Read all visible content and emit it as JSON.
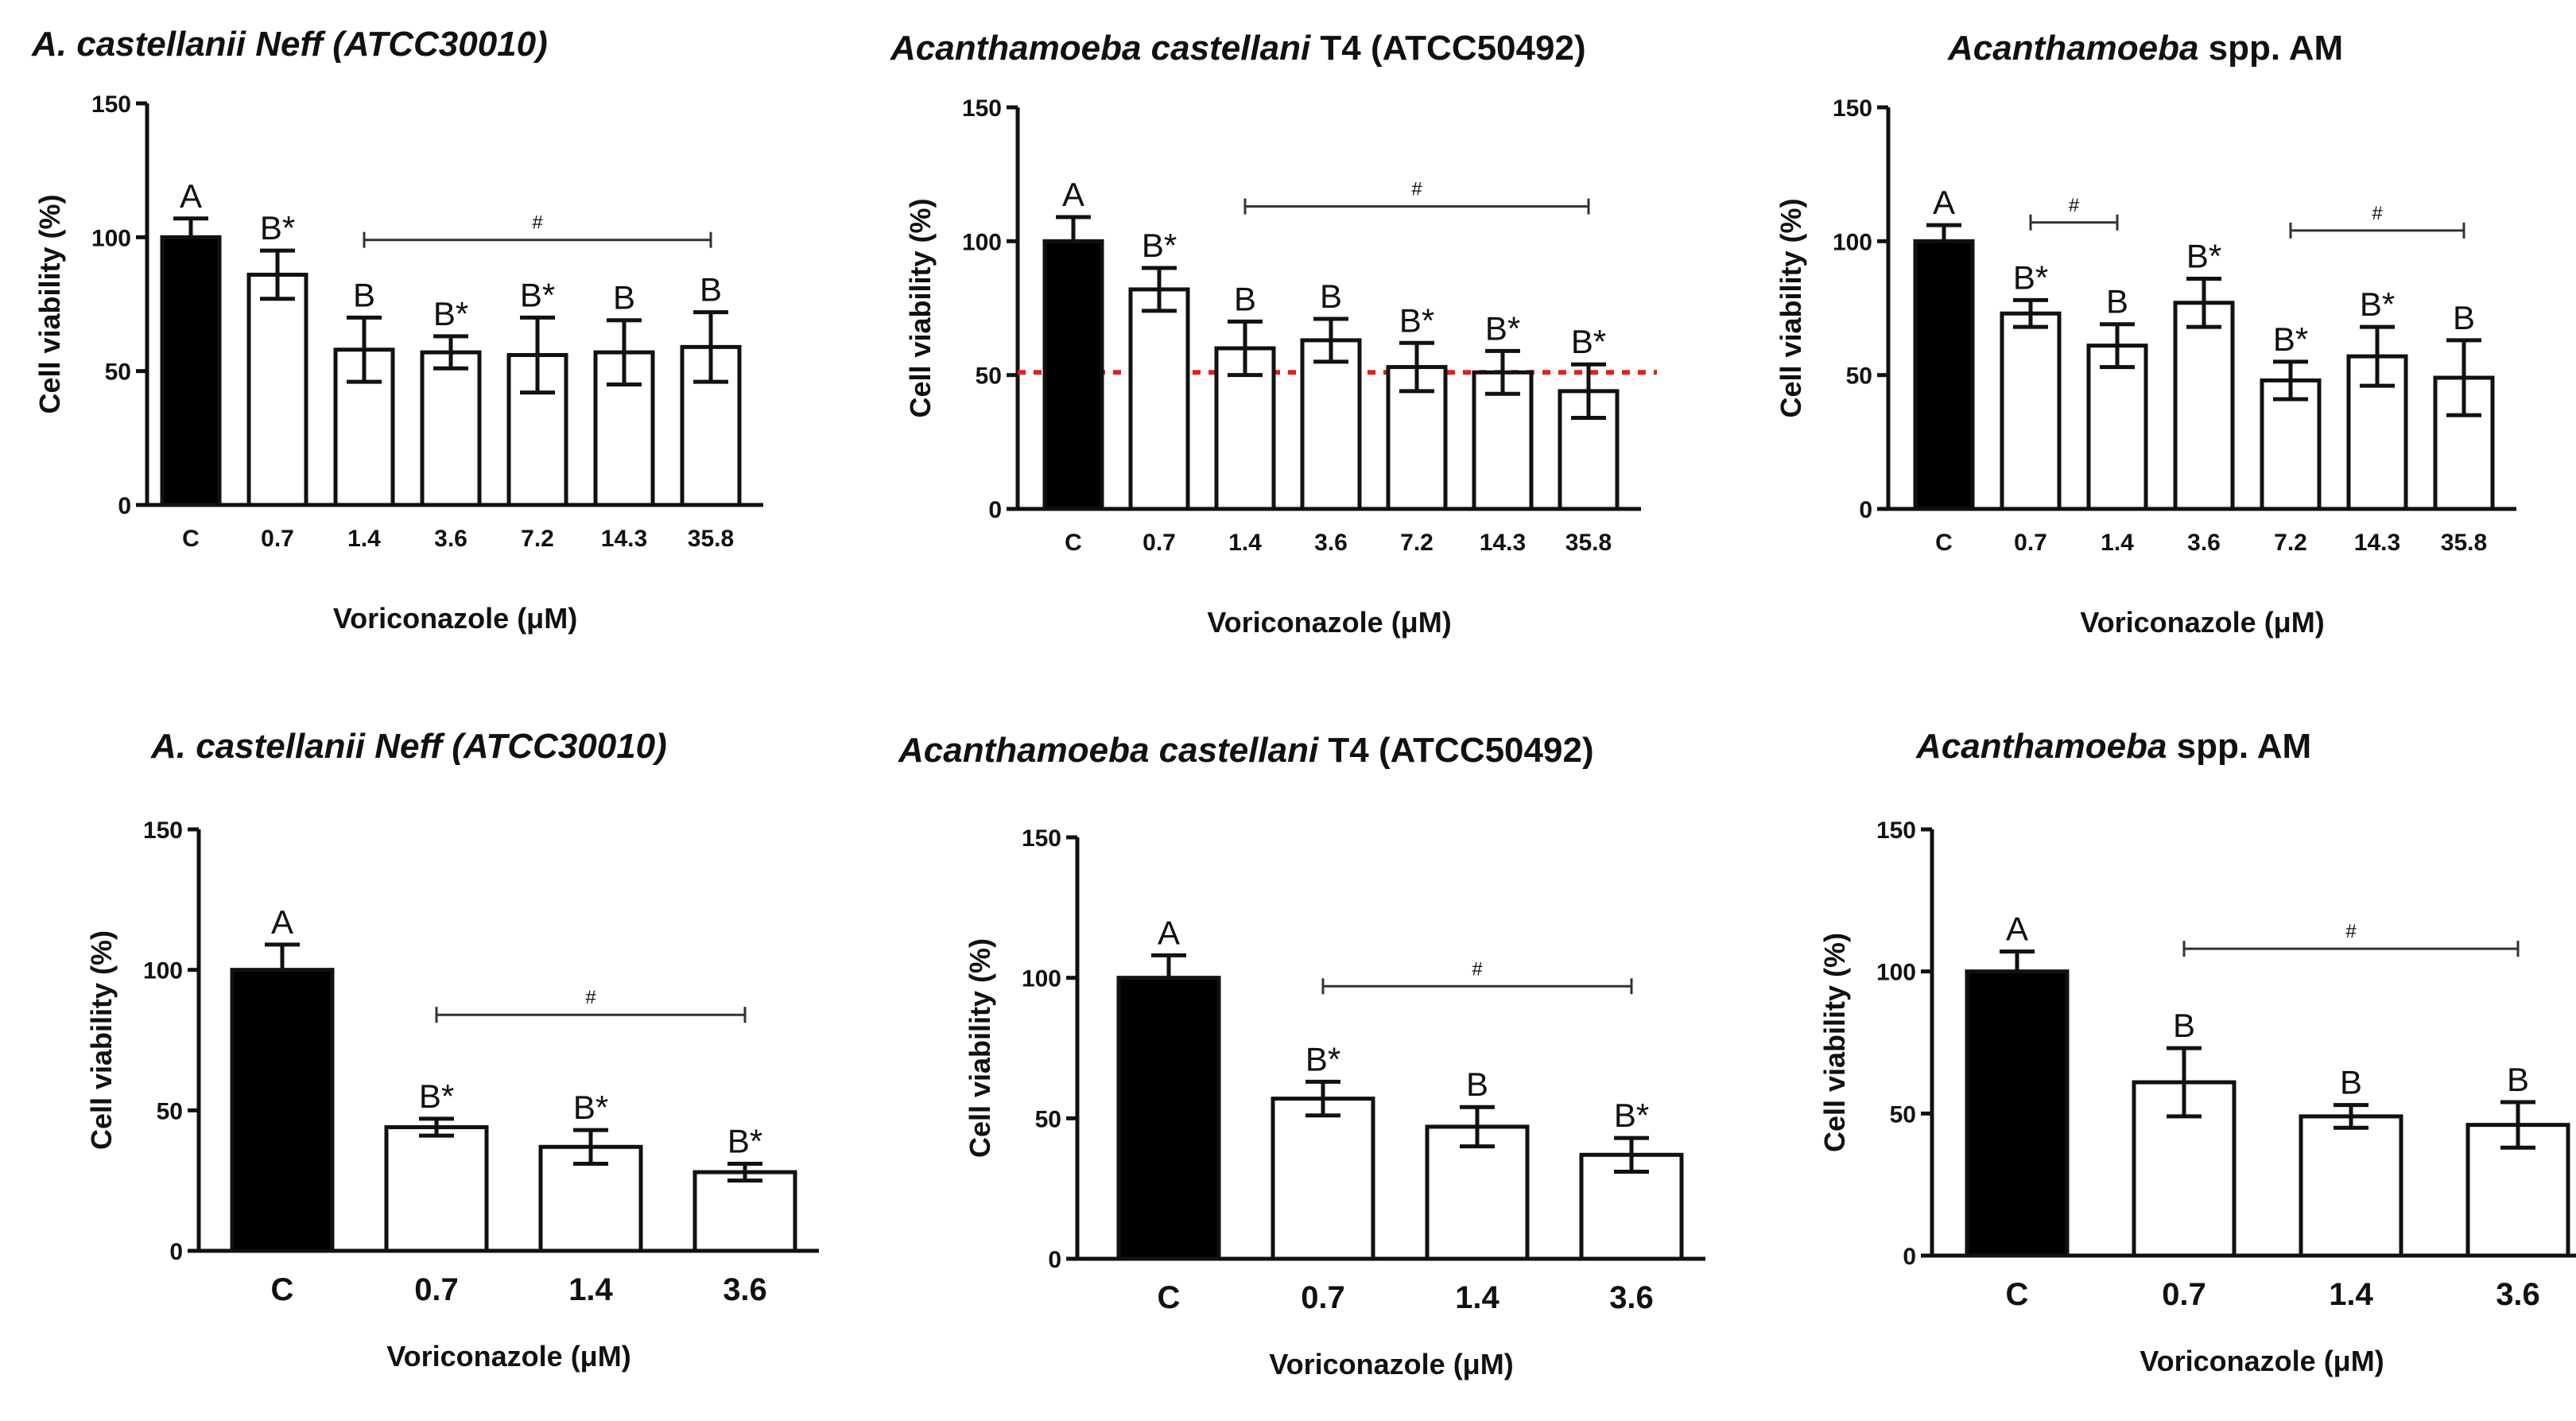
{
  "chart_data": [
    {
      "type": "bar",
      "title_parts": [
        {
          "text": "A. castellanii Neff (ATCC30010)",
          "italic": true
        }
      ],
      "categories": [
        "C",
        "0.7",
        "1.4",
        "3.6",
        "7.2",
        "14.3",
        "35.8"
      ],
      "values": [
        100,
        86,
        58,
        57,
        56,
        57,
        59
      ],
      "errors": [
        7,
        9,
        12,
        6,
        14,
        12,
        13
      ],
      "labels": [
        "A",
        "B*",
        "B",
        "B*",
        "B*",
        "B",
        "B"
      ],
      "fills": [
        "#000000",
        "#ffffff",
        "#ffffff",
        "#ffffff",
        "#ffffff",
        "#ffffff",
        "#ffffff"
      ],
      "ylabel": "Cell viability (%)",
      "xlabel": "Voriconazole (μM)",
      "yticks": [
        0,
        50,
        100,
        150
      ],
      "ylim": [
        0,
        150
      ],
      "brackets": [
        {
          "from": 2,
          "to": 6,
          "y": 99,
          "label": "#"
        }
      ],
      "reference_line": null
    },
    {
      "type": "bar",
      "title_parts": [
        {
          "text": "Acanthamoeba castellani",
          "italic": true
        },
        {
          "text": " T4 (ATCC50492)",
          "italic": false
        }
      ],
      "categories": [
        "C",
        "0.7",
        "1.4",
        "3.6",
        "7.2",
        "14.3",
        "35.8"
      ],
      "values": [
        100,
        82,
        60,
        63,
        53,
        51,
        44
      ],
      "errors": [
        9,
        8,
        10,
        8,
        9,
        8,
        10
      ],
      "labels": [
        "A",
        "B*",
        "B",
        "B",
        "B*",
        "B*",
        "B*"
      ],
      "fills": [
        "#000000",
        "#ffffff",
        "#ffffff",
        "#ffffff",
        "#ffffff",
        "#ffffff",
        "#ffffff"
      ],
      "ylabel": "Cell viability (%)",
      "xlabel": "Voriconazole (μM)",
      "yticks": [
        0,
        50,
        100,
        150
      ],
      "ylim": [
        0,
        150
      ],
      "brackets": [
        {
          "from": 2,
          "to": 6,
          "y": 113,
          "label": "#"
        }
      ],
      "reference_line": {
        "y": 51,
        "color": "#e02020"
      }
    },
    {
      "type": "bar",
      "title_parts": [
        {
          "text": "Acanthamoeba",
          "italic": true
        },
        {
          "text": " spp. AM",
          "italic": false
        }
      ],
      "categories": [
        "C",
        "0.7",
        "1.4",
        "3.6",
        "7.2",
        "14.3",
        "35.8"
      ],
      "values": [
        100,
        73,
        61,
        77,
        48,
        57,
        49
      ],
      "errors": [
        6,
        5,
        8,
        9,
        7,
        11,
        14
      ],
      "labels": [
        "A",
        "B*",
        "B",
        "B*",
        "B*",
        "B*",
        "B"
      ],
      "fills": [
        "#000000",
        "#ffffff",
        "#ffffff",
        "#ffffff",
        "#ffffff",
        "#ffffff",
        "#ffffff"
      ],
      "ylabel": "Cell viability (%)",
      "xlabel": "Voriconazole (μM)",
      "yticks": [
        0,
        50,
        100,
        150
      ],
      "ylim": [
        0,
        150
      ],
      "brackets": [
        {
          "from": 1,
          "to": 2,
          "y": 107,
          "label": "#"
        },
        {
          "from": 4,
          "to": 6,
          "y": 104,
          "label": "#"
        }
      ],
      "reference_line": null
    },
    {
      "type": "bar",
      "title_parts": [
        {
          "text": "A. castellanii Neff (ATCC30010)",
          "italic": true
        }
      ],
      "categories": [
        "C",
        "0.7",
        "1.4",
        "3.6"
      ],
      "values": [
        100,
        44,
        37,
        28
      ],
      "errors": [
        9,
        3,
        6,
        3
      ],
      "labels": [
        "A",
        "B*",
        "B*",
        "B*"
      ],
      "fills": [
        "#000000",
        "#ffffff",
        "#ffffff",
        "#ffffff"
      ],
      "ylabel": "Cell viability (%)",
      "xlabel": "Voriconazole (μM)",
      "yticks": [
        0,
        50,
        100,
        150
      ],
      "ylim": [
        0,
        150
      ],
      "brackets": [
        {
          "from": 1,
          "to": 3,
          "y": 84,
          "label": "#"
        }
      ],
      "reference_line": null
    },
    {
      "type": "bar",
      "title_parts": [
        {
          "text": "Acanthamoeba castellani",
          "italic": true
        },
        {
          "text": " T4 (ATCC50492)",
          "italic": false
        }
      ],
      "categories": [
        "C",
        "0.7",
        "1.4",
        "3.6"
      ],
      "values": [
        100,
        57,
        47,
        37
      ],
      "errors": [
        8,
        6,
        7,
        6
      ],
      "labels": [
        "A",
        "B*",
        "B",
        "B*"
      ],
      "fills": [
        "#000000",
        "#ffffff",
        "#ffffff",
        "#ffffff"
      ],
      "ylabel": "Cell viability (%)",
      "xlabel": "Voriconazole (μM)",
      "yticks": [
        0,
        50,
        100,
        150
      ],
      "ylim": [
        0,
        150
      ],
      "brackets": [
        {
          "from": 1,
          "to": 3,
          "y": 97,
          "label": "#"
        }
      ],
      "reference_line": null
    },
    {
      "type": "bar",
      "title_parts": [
        {
          "text": "Acanthamoeba",
          "italic": true
        },
        {
          "text": " spp. AM",
          "italic": false
        }
      ],
      "categories": [
        "C",
        "0.7",
        "1.4",
        "3.6"
      ],
      "values": [
        100,
        61,
        49,
        46
      ],
      "errors": [
        7,
        12,
        4,
        8
      ],
      "labels": [
        "A",
        "B",
        "B",
        "B"
      ],
      "fills": [
        "#000000",
        "#ffffff",
        "#ffffff",
        "#ffffff"
      ],
      "ylabel": "Cell viability (%)",
      "xlabel": "Voriconazole (μM)",
      "yticks": [
        0,
        50,
        100,
        150
      ],
      "ylim": [
        0,
        150
      ],
      "brackets": [
        {
          "from": 1,
          "to": 3,
          "y": 108,
          "label": "#"
        }
      ],
      "reference_line": null
    }
  ]
}
